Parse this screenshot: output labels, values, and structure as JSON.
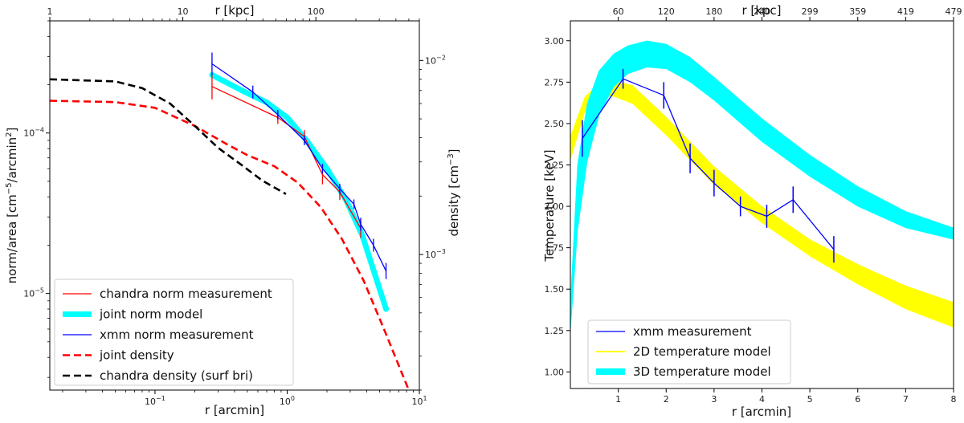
{
  "chart_data": [
    {
      "type": "line",
      "panel": "left",
      "xscale": "log",
      "xlim": [
        0.016,
        10
      ],
      "ylim": [
        2.5e-06,
        0.0005
      ],
      "xlabel": "r [arcmin]",
      "ylabel_parts": {
        "main": "norm/area [cm",
        "exp1": "−5",
        "mid": "/arcmin",
        "exp2": "2",
        "end": "]"
      },
      "y2label_parts": {
        "main": "density [cm",
        "exp": "−3",
        "end": "]"
      },
      "top_axis": {
        "label": "r [kpc]",
        "xlim": [
          1,
          600
        ],
        "ticks": [
          {
            "v": 1,
            "label": "1"
          },
          {
            "v": 10,
            "label": "10"
          },
          {
            "v": 100,
            "label": "100"
          }
        ]
      },
      "x_ticks": [
        {
          "v": 0.1,
          "base": "10",
          "exp": "−1"
        },
        {
          "v": 1,
          "base": "10",
          "exp": "0"
        },
        {
          "v": 10,
          "base": "10",
          "exp": "1"
        }
      ],
      "y_ticks": [
        {
          "v": 1e-05,
          "base": "10",
          "exp": "−5"
        },
        {
          "v": 0.0001,
          "base": "10",
          "exp": "−4"
        }
      ],
      "y2_ticks": [
        {
          "v": 0.001,
          "base": "10",
          "exp": "−3"
        },
        {
          "v": 0.01,
          "base": "10",
          "exp": "−2"
        }
      ],
      "y2lim": [
        0.0002,
        0.016
      ],
      "series": [
        {
          "name": "chandra norm measurement",
          "style": "line",
          "color": "#ff0000",
          "width": 1.3,
          "axis": "left",
          "x": [
            0.27,
            0.85,
            1.35,
            1.85,
            2.5,
            3.6
          ],
          "y": [
            0.000195,
            0.000125,
            9.5e-05,
            5.5e-05,
            4.3e-05,
            2.55e-05
          ],
          "err": [
            0.08,
            0.04,
            0.04,
            0.06,
            0.05,
            0.06
          ]
        },
        {
          "name": "joint norm model",
          "style": "band",
          "color": "#00ffff",
          "width": 7,
          "axis": "left",
          "x": [
            0.27,
            0.45,
            0.7,
            1.0,
            1.4,
            2.0,
            2.8,
            3.7,
            5.6
          ],
          "y": [
            0.00023,
            0.000185,
            0.000155,
            0.000125,
            9e-05,
            6e-05,
            3.8e-05,
            2.3e-05,
            8e-06
          ]
        },
        {
          "name": "xmm norm measurement",
          "style": "line",
          "color": "#0000ff",
          "width": 1.3,
          "axis": "left",
          "x": [
            0.27,
            0.55,
            0.85,
            1.35,
            1.85,
            2.5,
            3.2,
            3.6,
            4.5,
            5.6
          ],
          "y": [
            0.00027,
            0.00018,
            0.00013,
            9e-05,
            6e-05,
            4.5e-05,
            3.6e-05,
            2.7e-05,
            2e-05,
            1.38e-05
          ],
          "err": [
            0.07,
            0.04,
            0.03,
            0.03,
            0.03,
            0.03,
            0.03,
            0.04,
            0.04,
            0.05
          ]
        },
        {
          "name": "joint density",
          "style": "dash",
          "color": "#ff0000",
          "width": 2.6,
          "axis": "right",
          "x": [
            0.016,
            0.05,
            0.1,
            0.2,
            0.35,
            0.5,
            0.8,
            1.2,
            1.8,
            2.6,
            3.8,
            5.5,
            8.2
          ],
          "y": [
            0.0062,
            0.0061,
            0.0057,
            0.0046,
            0.0037,
            0.00325,
            0.00285,
            0.00235,
            0.00175,
            0.0012,
            0.00073,
            0.0004,
            0.000205
          ]
        },
        {
          "name": "chandra density (surf bri)",
          "style": "dash",
          "color": "#000000",
          "width": 2.6,
          "axis": "right",
          "x": [
            0.016,
            0.05,
            0.08,
            0.13,
            0.2,
            0.3,
            0.45,
            0.65,
            0.98
          ],
          "y": [
            0.008,
            0.0078,
            0.0072,
            0.006,
            0.0046,
            0.00355,
            0.0029,
            0.0024,
            0.00205
          ]
        }
      ],
      "legend": {
        "position": "lower-left"
      }
    },
    {
      "type": "line",
      "panel": "right",
      "xscale": "linear",
      "xlim": [
        0,
        8
      ],
      "ylim": [
        0.9,
        3.12
      ],
      "xlabel": "r [arcmin]",
      "ylabel": "Temperature [keV]",
      "x_ticks": [
        {
          "v": 1,
          "label": "1"
        },
        {
          "v": 2,
          "label": "2"
        },
        {
          "v": 3,
          "label": "3"
        },
        {
          "v": 4,
          "label": "4"
        },
        {
          "v": 5,
          "label": "5"
        },
        {
          "v": 6,
          "label": "6"
        },
        {
          "v": 7,
          "label": "7"
        },
        {
          "v": 8,
          "label": "8"
        }
      ],
      "y_ticks": [
        "1.00",
        "1.25",
        "1.50",
        "1.75",
        "2.00",
        "2.25",
        "2.50",
        "2.75",
        "3.00"
      ],
      "top_axis": {
        "label": "r [kpc]",
        "ticks": [
          {
            "v": 1,
            "label": "60"
          },
          {
            "v": 2,
            "label": "120"
          },
          {
            "v": 3,
            "label": "180"
          },
          {
            "v": 4,
            "label": "240"
          },
          {
            "v": 5,
            "label": "299"
          },
          {
            "v": 6,
            "label": "359"
          },
          {
            "v": 7,
            "label": "419"
          },
          {
            "v": 8,
            "label": "479"
          }
        ]
      },
      "series": [
        {
          "name": "xmm measurement",
          "style": "line",
          "color": "#0000ff",
          "width": 1.3,
          "x": [
            0.25,
            1.1,
            1.95,
            2.5,
            3.0,
            3.55,
            4.1,
            4.65,
            5.5
          ],
          "y": [
            2.41,
            2.77,
            2.67,
            2.29,
            2.14,
            2.0,
            1.94,
            2.04,
            1.74
          ],
          "err": [
            0.11,
            0.06,
            0.08,
            0.09,
            0.08,
            0.06,
            0.07,
            0.08,
            0.08
          ]
        },
        {
          "name": "2D temperature model",
          "style": "band",
          "color": "#ffff00",
          "x": [
            0.0,
            0.3,
            0.6,
            0.9,
            1.3,
            2.0,
            3.0,
            4.0,
            5.0,
            6.0,
            7.0,
            8.0
          ],
          "upper": [
            2.42,
            2.66,
            2.745,
            2.76,
            2.73,
            2.54,
            2.24,
            2.0,
            1.8,
            1.65,
            1.52,
            1.42
          ],
          "lower": [
            2.28,
            2.57,
            2.665,
            2.665,
            2.62,
            2.43,
            2.13,
            1.9,
            1.7,
            1.53,
            1.38,
            1.27
          ]
        },
        {
          "name": "3D temperature model",
          "style": "band",
          "color": "#00ffff",
          "x": [
            0.0,
            0.15,
            0.35,
            0.6,
            0.9,
            1.2,
            1.6,
            2.0,
            2.5,
            3.0,
            4.0,
            5.0,
            6.0,
            7.0,
            8.0
          ],
          "upper": [
            1.42,
            2.25,
            2.62,
            2.82,
            2.92,
            2.97,
            3.0,
            2.98,
            2.9,
            2.78,
            2.53,
            2.31,
            2.12,
            1.97,
            1.87
          ],
          "lower": [
            1.24,
            1.85,
            2.27,
            2.55,
            2.72,
            2.8,
            2.84,
            2.83,
            2.75,
            2.64,
            2.39,
            2.18,
            2.0,
            1.87,
            1.8
          ]
        }
      ],
      "legend": {
        "position": "lower-left"
      }
    }
  ]
}
